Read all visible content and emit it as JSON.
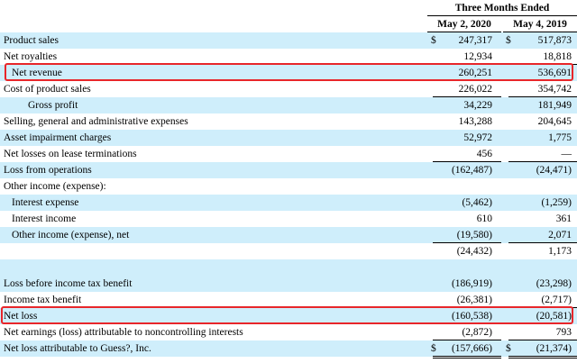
{
  "header": {
    "group_title": "Three Months Ended",
    "col1": "May 2, 2020",
    "col2": "May 4, 2019"
  },
  "rows": [
    {
      "label": "Product sales",
      "cur1": "$",
      "v1": "247,317",
      "cur2": "$",
      "v2": "517,873"
    },
    {
      "label": "Net royalties",
      "cur1": "",
      "v1": "12,934",
      "cur2": "",
      "v2": "18,818"
    },
    {
      "label": "Net revenue",
      "cur1": "",
      "v1": "260,251",
      "cur2": "",
      "v2": "536,691"
    },
    {
      "label": "Cost of product sales",
      "cur1": "",
      "v1": "226,022",
      "cur2": "",
      "v2": "354,742"
    },
    {
      "label": "Gross profit",
      "cur1": "",
      "v1": "34,229",
      "cur2": "",
      "v2": "181,949"
    },
    {
      "label": "Selling, general and administrative expenses",
      "cur1": "",
      "v1": "143,288",
      "cur2": "",
      "v2": "204,645"
    },
    {
      "label": "Asset impairment charges",
      "cur1": "",
      "v1": "52,972",
      "cur2": "",
      "v2": "1,775"
    },
    {
      "label": "Net losses on lease terminations",
      "cur1": "",
      "v1": "456",
      "cur2": "",
      "v2": "—"
    },
    {
      "label": "Loss from operations",
      "cur1": "",
      "v1": "(162,487)",
      "cur2": "",
      "v2": "(24,471)"
    },
    {
      "label": "Other income (expense):",
      "cur1": "",
      "v1": "",
      "cur2": "",
      "v2": ""
    },
    {
      "label": "Interest expense",
      "cur1": "",
      "v1": "(5,462)",
      "cur2": "",
      "v2": "(1,259)"
    },
    {
      "label": "Interest income",
      "cur1": "",
      "v1": "610",
      "cur2": "",
      "v2": "361"
    },
    {
      "label": "Other income (expense), net",
      "cur1": "",
      "v1": "(19,580)",
      "cur2": "",
      "v2": "2,071"
    },
    {
      "label": "",
      "cur1": "",
      "v1": "(24,432)",
      "cur2": "",
      "v2": "1,173"
    },
    {
      "label": "",
      "cur1": "",
      "v1": "",
      "cur2": "",
      "v2": ""
    },
    {
      "label": "Loss before income tax benefit",
      "cur1": "",
      "v1": "(186,919)",
      "cur2": "",
      "v2": "(23,298)"
    },
    {
      "label": "Income tax benefit",
      "cur1": "",
      "v1": "(26,381)",
      "cur2": "",
      "v2": "(2,717)"
    },
    {
      "label": "Net loss",
      "cur1": "",
      "v1": "(160,538)",
      "cur2": "",
      "v2": "(20,581)"
    },
    {
      "label": "Net earnings (loss) attributable to noncontrolling interests",
      "cur1": "",
      "v1": "(2,872)",
      "cur2": "",
      "v2": "793"
    },
    {
      "label": "Net loss attributable to Guess?, Inc.",
      "cur1": "$",
      "v1": "(157,666)",
      "cur2": "$",
      "v2": "(21,374)"
    }
  ],
  "colors": {
    "shade": "#cfeefb",
    "highlight": "#e8262a"
  }
}
